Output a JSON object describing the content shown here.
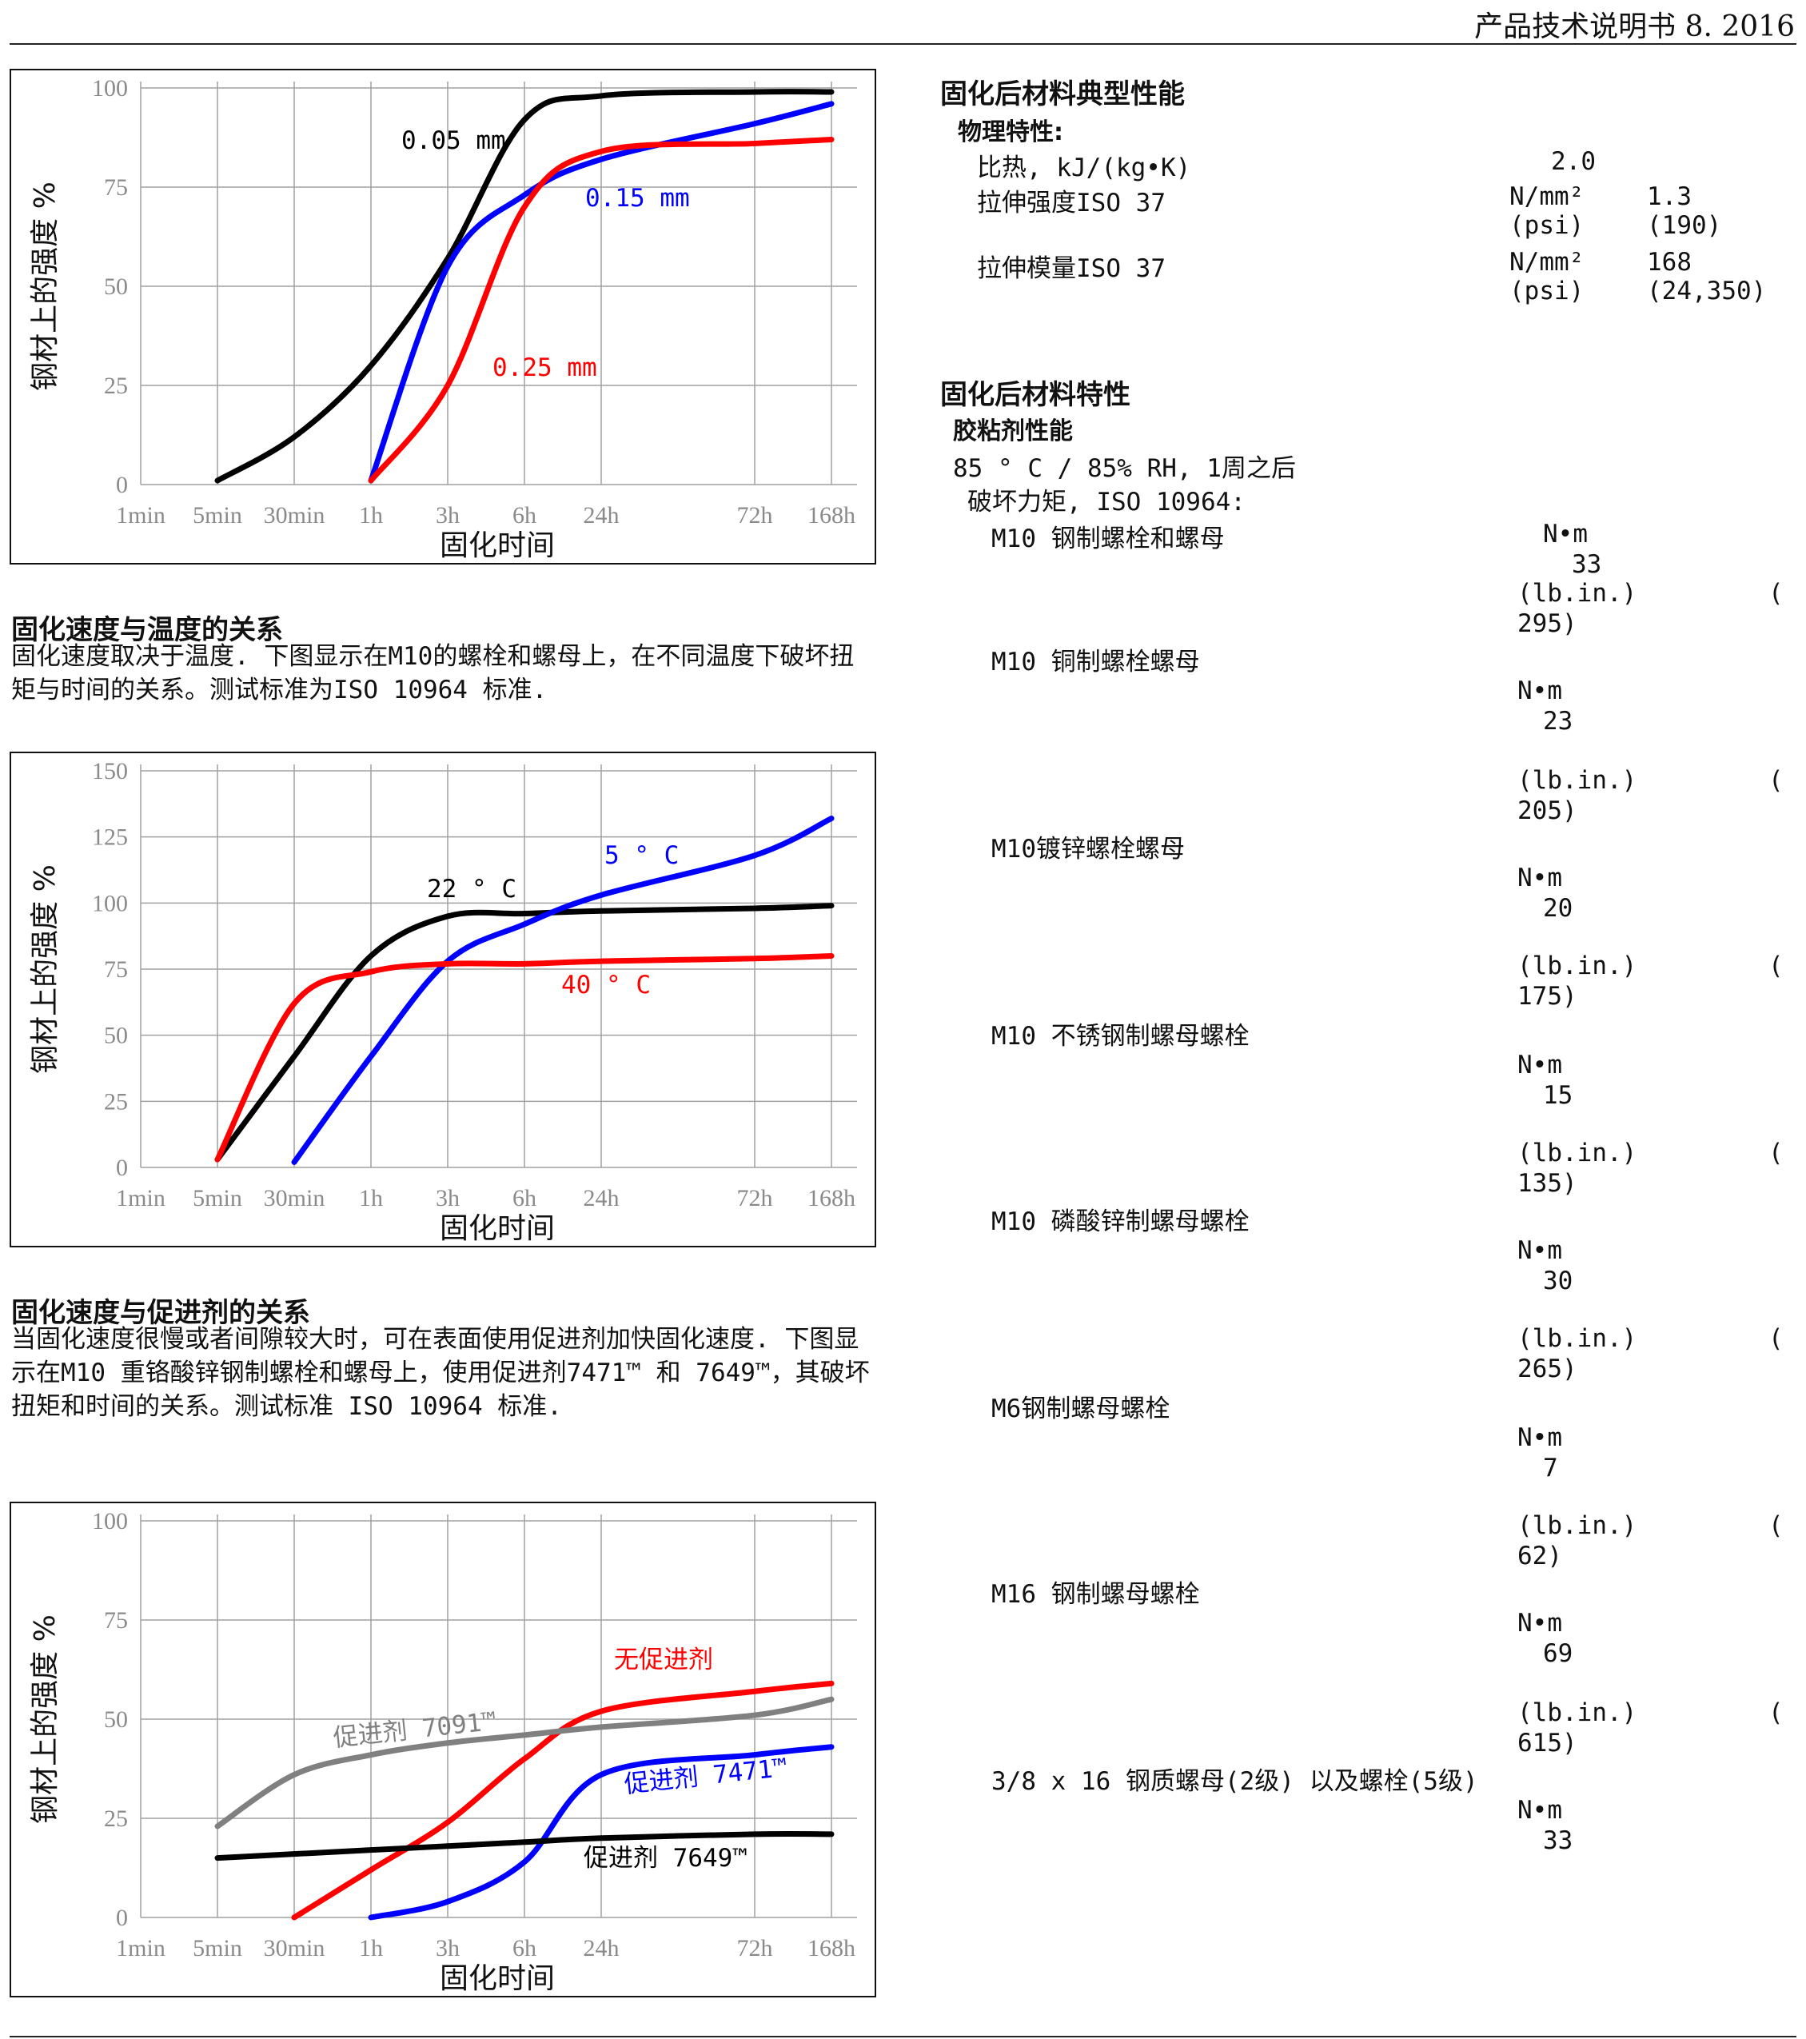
{
  "header": {
    "title": "产品技术说明书 8. 2016"
  },
  "x_ticks": [
    "1min",
    "5min",
    "30min",
    "1h",
    "3h",
    "6h",
    "24h",
    "72h",
    "168h"
  ],
  "charts": [
    {
      "chart_data": {
        "type": "line",
        "ylabel": "钢材上的强度 %",
        "xlabel": "固化时间",
        "y_ticks": [
          "100",
          "75",
          "50",
          "25",
          "0"
        ],
        "ylim": [
          0,
          100
        ],
        "x_categories": [
          "1min",
          "5min",
          "30min",
          "1h",
          "3h",
          "6h",
          "24h",
          "72h",
          "168h"
        ],
        "series": [
          {
            "name": "0.05 mm",
            "color": "#000000",
            "points": [
              [
                "5min",
                1
              ],
              [
                "30min",
                12
              ],
              [
                "1h",
                30
              ],
              [
                "3h",
                57
              ],
              [
                "6h",
                92
              ],
              [
                "24h",
                98
              ],
              [
                "72h",
                99
              ],
              [
                "168h",
                99
              ]
            ]
          },
          {
            "name": "0.15 mm",
            "color": "#0000ff",
            "points": [
              [
                "1h",
                1
              ],
              [
                "3h",
                55
              ],
              [
                "6h",
                73
              ],
              [
                "24h",
                82
              ],
              [
                "72h",
                91
              ],
              [
                "168h",
                96
              ]
            ]
          },
          {
            "name": "0.25 mm",
            "color": "#ff0000",
            "points": [
              [
                "1h",
                1
              ],
              [
                "3h",
                25
              ],
              [
                "6h",
                70
              ],
              [
                "24h",
                84
              ],
              [
                "72h",
                86
              ],
              [
                "168h",
                87
              ]
            ]
          }
        ]
      }
    },
    {
      "chart_data": {
        "type": "line",
        "ylabel": "钢材上的强度 %",
        "xlabel": "固化时间",
        "y_ticks": [
          "150",
          "125",
          "100",
          "75",
          "50",
          "25",
          "0"
        ],
        "ylim": [
          0,
          150
        ],
        "x_categories": [
          "1min",
          "5min",
          "30min",
          "1h",
          "3h",
          "6h",
          "24h",
          "72h",
          "168h"
        ],
        "series": [
          {
            "name": "22 ° C",
            "color": "#000000",
            "points": [
              [
                "5min",
                3
              ],
              [
                "30min",
                42
              ],
              [
                "1h",
                80
              ],
              [
                "3h",
                95
              ],
              [
                "6h",
                96
              ],
              [
                "24h",
                97
              ],
              [
                "72h",
                98
              ],
              [
                "168h",
                99
              ]
            ]
          },
          {
            "name": "5 ° C",
            "color": "#0000ff",
            "points": [
              [
                "30min",
                2
              ],
              [
                "1h",
                42
              ],
              [
                "3h",
                78
              ],
              [
                "6h",
                92
              ],
              [
                "24h",
                103
              ],
              [
                "72h",
                118
              ],
              [
                "168h",
                132
              ]
            ]
          },
          {
            "name": "40 ° C",
            "color": "#ff0000",
            "points": [
              [
                "5min",
                3
              ],
              [
                "30min",
                62
              ],
              [
                "1h",
                74
              ],
              [
                "3h",
                77
              ],
              [
                "6h",
                77
              ],
              [
                "24h",
                78
              ],
              [
                "72h",
                79
              ],
              [
                "168h",
                80
              ]
            ]
          }
        ]
      }
    },
    {
      "chart_data": {
        "type": "line",
        "ylabel": "钢材上的强度 %",
        "xlabel": "固化时间",
        "y_ticks": [
          "100",
          "75",
          "50",
          "25",
          "0"
        ],
        "ylim": [
          0,
          100
        ],
        "x_categories": [
          "1min",
          "5min",
          "30min",
          "1h",
          "3h",
          "6h",
          "24h",
          "72h",
          "168h"
        ],
        "series": [
          {
            "name": "无促进剂",
            "color": "#ff0000",
            "points": [
              [
                "30min",
                0
              ],
              [
                "1h",
                12
              ],
              [
                "3h",
                24
              ],
              [
                "6h",
                40
              ],
              [
                "24h",
                52
              ],
              [
                "72h",
                57
              ],
              [
                "168h",
                59
              ]
            ]
          },
          {
            "name": "促进剂 7091™",
            "color": "#808080",
            "points": [
              [
                "5min",
                23
              ],
              [
                "30min",
                36
              ],
              [
                "1h",
                41
              ],
              [
                "3h",
                44
              ],
              [
                "6h",
                46
              ],
              [
                "24h",
                48
              ],
              [
                "72h",
                51
              ],
              [
                "168h",
                55
              ]
            ]
          },
          {
            "name": "促进剂 7471™",
            "color": "#0000ff",
            "points": [
              [
                "1h",
                0
              ],
              [
                "3h",
                4
              ],
              [
                "6h",
                14
              ],
              [
                "24h",
                36
              ],
              [
                "72h",
                41
              ],
              [
                "168h",
                43
              ]
            ]
          },
          {
            "name": "促进剂 7649™",
            "color": "#000000",
            "points": [
              [
                "5min",
                15
              ],
              [
                "1h",
                17
              ],
              [
                "3h",
                18
              ],
              [
                "6h",
                19
              ],
              [
                "24h",
                20
              ],
              [
                "72h",
                21
              ],
              [
                "168h",
                21
              ]
            ]
          }
        ]
      }
    }
  ],
  "sections": {
    "temp_title": "固化速度与温度的关系",
    "temp_body": "固化速度取决于温度.  下图显示在M10的螺栓和螺母上，在不同温度下破坏扭矩与时间的关系。测试标准为ISO 10964 标准.",
    "accel_title": "固化速度与促进剂的关系",
    "accel_body": "当固化速度很慢或者间隙较大时，可在表面使用促进剂加快固化速度.  下图显示在M10  重铬酸锌钢制螺栓和螺母上，使用促进剂7471™  和   7649™，其破坏扭矩和时间的关系。测试标准 ISO 10964 标准."
  },
  "right": {
    "typical_title": "固化后材料典型性能",
    "physical_label": "物理特性:",
    "specific_heat_label": "比热, kJ/(kg•K)",
    "specific_heat_value": "2.0",
    "tensile_strength_label": "拉伸强度ISO 37",
    "tensile_strength_unit": "N/mm²",
    "tensile_strength_value": "1.3",
    "tensile_strength_unit2": "(psi)",
    "tensile_strength_value2": "(190)",
    "tensile_modulus_label": "拉伸模量ISO 37",
    "tensile_modulus_unit": "N/mm²",
    "tensile_modulus_value": "168",
    "tensile_modulus_unit2": "(psi)",
    "tensile_modulus_value2": "(24,350)",
    "props_title": "固化后材料特性",
    "adhesive_title": "胶粘剂性能",
    "condition": "85 ° C / 85% RH, 1周之后",
    "test_label": "破坏力矩, ISO 10964:",
    "nm": "N•m",
    "lbin": "(lb.in.)",
    "paren": "(",
    "items": [
      {
        "label": "M10  钢制螺栓和螺母",
        "nm": "33",
        "lb": "295)"
      },
      {
        "label": "M10 铜制螺栓螺母",
        "nm": "23",
        "lb": "205)"
      },
      {
        "label": "M10镀锌螺栓螺母",
        "nm": "20",
        "lb": "175)"
      },
      {
        "label": "M10  不锈钢制螺母螺栓",
        "nm": "15",
        "lb": "135)"
      },
      {
        "label": "M10  磷酸锌制螺母螺栓",
        "nm": "30",
        "lb": "265)"
      },
      {
        "label": "M6钢制螺母螺栓",
        "nm": "7",
        "lb": "62)"
      },
      {
        "label": "M16  钢制螺母螺栓",
        "nm": "69",
        "lb": "615)"
      },
      {
        "label": "3/8 x 16 钢质螺母(2级) 以及螺栓(5级)",
        "nm": "33",
        "lb": ""
      }
    ]
  }
}
